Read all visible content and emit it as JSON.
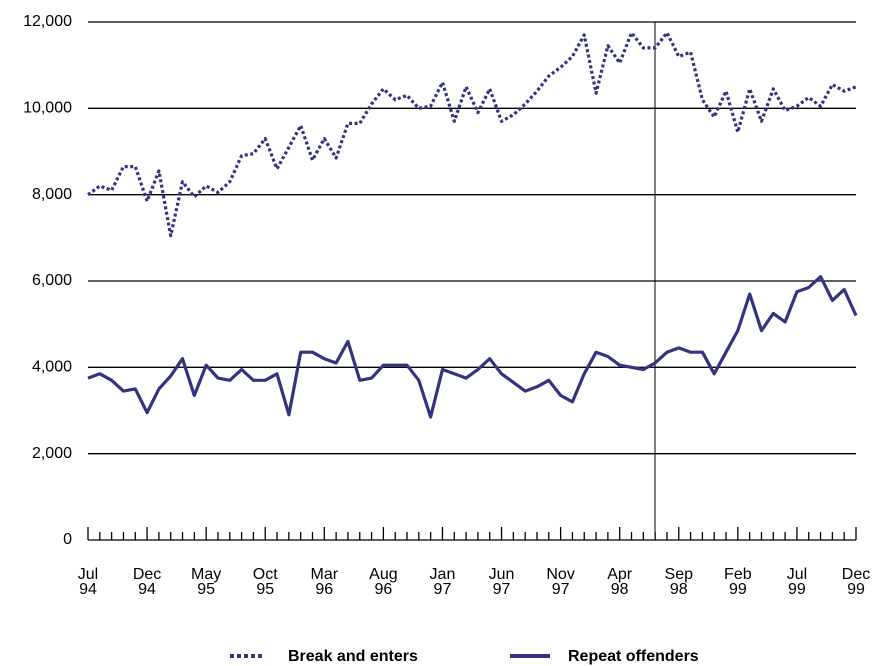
{
  "chart_data": {
    "type": "line",
    "categories": [
      "Jul\n94",
      null,
      null,
      null,
      null,
      "Dec\n94",
      null,
      null,
      null,
      null,
      "May\n95",
      null,
      null,
      null,
      null,
      "Oct\n95",
      null,
      null,
      null,
      null,
      "Mar\n96",
      null,
      null,
      null,
      null,
      "Aug\n96",
      null,
      null,
      null,
      null,
      "Jan\n97",
      null,
      null,
      null,
      null,
      "Jun\n97",
      null,
      null,
      null,
      null,
      "Nov\n97",
      null,
      null,
      null,
      null,
      "Apr\n98",
      null,
      null,
      null,
      null,
      "Sep\n98",
      null,
      null,
      null,
      null,
      "Feb\n99",
      null,
      null,
      null,
      null,
      "Jul\n99",
      null,
      null,
      null,
      null,
      "Dec\n99"
    ],
    "series": [
      {
        "name": "Break and enters",
        "color": "#333380",
        "dash": true,
        "values": [
          8000,
          8200,
          8100,
          8650,
          8650,
          7850,
          8550,
          7050,
          8300,
          7950,
          8200,
          8050,
          8300,
          8900,
          8950,
          9300,
          8600,
          9100,
          9600,
          8800,
          9300,
          8850,
          9650,
          9650,
          10100,
          10450,
          10200,
          10300,
          10000,
          10050,
          10600,
          9700,
          10500,
          9900,
          10450,
          9700,
          9850,
          10100,
          10400,
          10750,
          10950,
          11200,
          11700,
          10350,
          11450,
          11050,
          11750,
          11400,
          11400,
          11750,
          11200,
          11300,
          10200,
          9800,
          10400,
          9450,
          10450,
          9700,
          10450,
          9950,
          10050,
          10250,
          10050,
          10550,
          10400,
          10500
        ]
      },
      {
        "name": "Repeat offenders",
        "color": "#333380",
        "dash": false,
        "values": [
          3750,
          3850,
          3700,
          3450,
          3500,
          2950,
          3500,
          3800,
          4200,
          3350,
          4050,
          3750,
          3700,
          3950,
          3700,
          3700,
          3850,
          2900,
          4350,
          4350,
          4200,
          4100,
          4600,
          3700,
          3750,
          4050,
          4050,
          4050,
          3700,
          2850,
          3950,
          3850,
          3750,
          3950,
          4200,
          3850,
          3650,
          3450,
          3550,
          3700,
          3350,
          3200,
          3850,
          4350,
          4250,
          4050,
          4000,
          3950,
          4100,
          4350,
          4450,
          4350,
          4350,
          3850,
          4350,
          4850,
          5700,
          4850,
          5250,
          5050,
          5750,
          5850,
          6100,
          5550,
          5800,
          5200
        ]
      }
    ],
    "ylim": [
      0,
      12000
    ],
    "yticks": [
      0,
      {
        "value": 2000,
        "label": "2,000"
      },
      {
        "value": 4000,
        "label": "4,000"
      },
      {
        "value": 6000,
        "label": "6,000"
      },
      {
        "value": 8000,
        "label": "8,000"
      },
      {
        "value": 10000,
        "label": "10,000"
      },
      {
        "value": 12000,
        "label": "12,000"
      }
    ],
    "grid": true
  }
}
